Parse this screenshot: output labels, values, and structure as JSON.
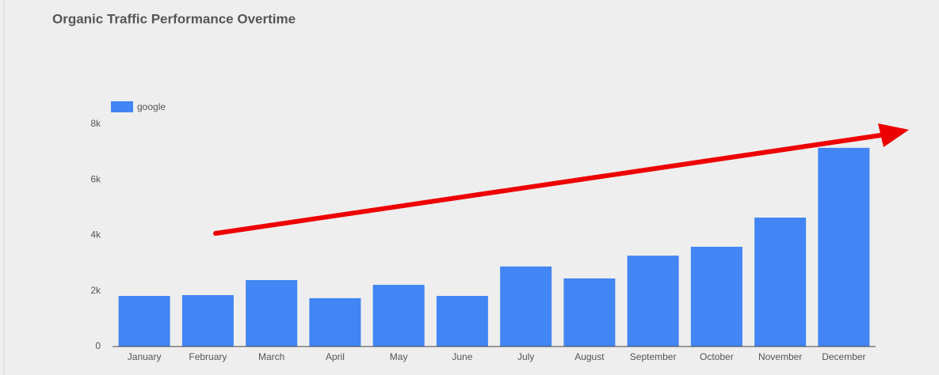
{
  "chart_data": {
    "type": "bar",
    "title": "Organic Traffic Performance Overtime",
    "categories": [
      "January",
      "February",
      "March",
      "April",
      "May",
      "June",
      "July",
      "August",
      "September",
      "October",
      "November",
      "December"
    ],
    "series": [
      {
        "name": "google",
        "color": "#4285f4",
        "values": [
          1820,
          1850,
          2390,
          1740,
          2220,
          1820,
          2880,
          2450,
          3270,
          3590,
          4640,
          7150
        ]
      }
    ],
    "ylim": [
      0,
      8000
    ],
    "yticks": [
      0,
      {
        "value": 2000,
        "label": "2k"
      },
      {
        "value": 4000,
        "label": "4k"
      },
      {
        "value": 6000,
        "label": "6k"
      },
      {
        "value": 8000,
        "label": "8k"
      }
    ],
    "grid": false
  }
}
